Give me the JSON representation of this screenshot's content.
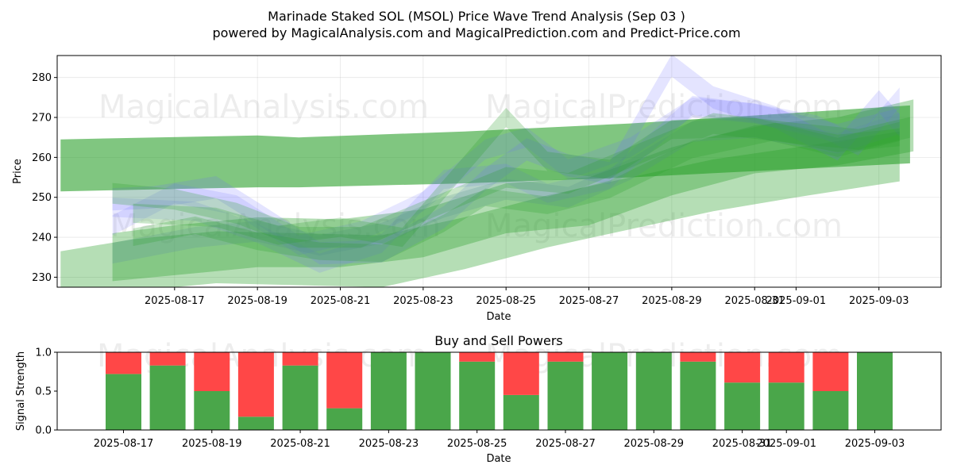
{
  "figure": {
    "title_line1": "Marinade Staked SOL (MSOL) Price Wave Trend Analysis (Sep 03 )",
    "title_line2": "powered by MagicalAnalysis.com and MagicalPrediction.com and Predict-Price.com",
    "watermarks": [
      "MagicalAnalysis.com",
      "MagicalPrediction.com"
    ]
  },
  "chart_data": [
    {
      "type": "area",
      "name": "price-wave-chart",
      "title": "",
      "xlabel": "Date",
      "ylabel": "Price",
      "xlim": [
        "2025-08-14T04:00",
        "2025-09-04T12:00"
      ],
      "ylim": [
        227.5,
        285.5
      ],
      "yticks": [
        230,
        240,
        250,
        260,
        270,
        280
      ],
      "xticks": [
        "2025-08-17",
        "2025-08-19",
        "2025-08-21",
        "2025-08-23",
        "2025-08-25",
        "2025-08-27",
        "2025-08-29",
        "2025-08-31",
        "2025-09-01",
        "2025-09-03"
      ],
      "xtick_labels": [
        "2025-08-17",
        "2025-08-19",
        "2025-08-21",
        "2025-08-23",
        "2025-08-25",
        "2025-08-27",
        "2025-08-29",
        "2025-08-31",
        "2025-09-01",
        "2025-09-03"
      ],
      "grid": true,
      "colors": {
        "green": "#2ca02c",
        "blue": "#6a6aff",
        "steel": "#5b8aa8"
      },
      "series": [
        {
          "name": "long-trend-upper",
          "color": "green",
          "opacity": 0.6,
          "x": [
            "2025-08-14T06:00",
            "2025-08-19T00:00",
            "2025-08-20T00:00",
            "2025-08-24T00:00",
            "2025-08-28T00:00",
            "2025-09-03T18:00"
          ],
          "upper": [
            264.5,
            265.5,
            265.0,
            266.5,
            268.5,
            273.0
          ],
          "lower": [
            251.5,
            252.5,
            252.5,
            253.5,
            255.0,
            258.5
          ]
        },
        {
          "name": "band-green-1",
          "color": "green",
          "opacity": 0.35,
          "x": [
            "2025-08-14T06:00",
            "2025-08-16T00:00",
            "2025-08-18T00:00",
            "2025-08-20T00:00",
            "2025-08-22T00:00",
            "2025-08-24T00:00",
            "2025-08-26T00:00",
            "2025-08-28T00:00",
            "2025-08-30T00:00",
            "2025-09-01T00:00",
            "2025-09-03T12:00"
          ],
          "upper": [
            236.5,
            239.5,
            241.5,
            241.0,
            240.5,
            245.0,
            250.5,
            255.0,
            259.5,
            262.5,
            266.5
          ],
          "lower": [
            223.0,
            226.5,
            228.5,
            228.0,
            227.5,
            232.0,
            237.5,
            242.0,
            246.5,
            250.0,
            254.0
          ]
        },
        {
          "name": "band-green-2",
          "color": "green",
          "opacity": 0.35,
          "x": [
            "2025-08-15T12:00",
            "2025-08-17T00:00",
            "2025-08-19T00:00",
            "2025-08-21T00:00",
            "2025-08-23T00:00",
            "2025-08-25T00:00",
            "2025-08-27T00:00",
            "2025-08-29T00:00",
            "2025-08-31T00:00",
            "2025-09-02T00:00",
            "2025-09-03T20:00"
          ],
          "upper": [
            241.0,
            243.0,
            245.0,
            244.5,
            247.0,
            253.5,
            255.0,
            262.5,
            268.0,
            270.0,
            274.5
          ],
          "lower": [
            229.0,
            230.5,
            232.5,
            232.5,
            235.0,
            241.0,
            243.0,
            250.5,
            256.0,
            258.0,
            261.5
          ]
        },
        {
          "name": "wave-blue-1",
          "color": "blue",
          "opacity": 0.18,
          "width": 2.8,
          "x": [
            "2025-08-15T12:00",
            "2025-08-16T12:00",
            "2025-08-18T00:00",
            "2025-08-19T00:00",
            "2025-08-20T12:00",
            "2025-08-22T00:00",
            "2025-08-23T12:00",
            "2025-08-24T12:00",
            "2025-08-25T12:00",
            "2025-08-26T12:00",
            "2025-08-27T12:00",
            "2025-08-29T00:00",
            "2025-08-30T00:00",
            "2025-08-31T12:00",
            "2025-09-02T00:00",
            "2025-09-03T00:00",
            "2025-09-03T12:00"
          ],
          "y": [
            249.5,
            250.0,
            252.5,
            246.0,
            236.0,
            236.5,
            245.0,
            254.5,
            262.0,
            258.0,
            256.0,
            283.0,
            275.0,
            270.0,
            262.0,
            274.0,
            268.0
          ]
        },
        {
          "name": "wave-blue-2",
          "color": "blue",
          "opacity": 0.16,
          "width": 2.5,
          "x": [
            "2025-08-15T12:00",
            "2025-08-17T00:00",
            "2025-08-18T12:00",
            "2025-08-20T00:00",
            "2025-08-21T12:00",
            "2025-08-23T00:00",
            "2025-08-24T12:00",
            "2025-08-25T12:00",
            "2025-08-26T12:00",
            "2025-08-28T00:00",
            "2025-08-29T12:00",
            "2025-08-31T00:00",
            "2025-09-01T12:00",
            "2025-09-02T12:00",
            "2025-09-03T12:00"
          ],
          "y": [
            243.0,
            251.0,
            248.0,
            238.0,
            241.5,
            249.0,
            262.0,
            265.0,
            257.0,
            262.5,
            272.5,
            271.0,
            268.0,
            263.0,
            275.0
          ]
        },
        {
          "name": "wave-blue-3",
          "color": "blue",
          "opacity": 0.16,
          "width": 2.4,
          "x": [
            "2025-08-15T12:00",
            "2025-08-17T12:00",
            "2025-08-19T00:00",
            "2025-08-20T12:00",
            "2025-08-22T00:00",
            "2025-08-23T12:00",
            "2025-08-25T00:00",
            "2025-08-26T00:00",
            "2025-08-27T12:00",
            "2025-08-29T12:00",
            "2025-08-31T00:00",
            "2025-09-02T00:00",
            "2025-09-03T12:00"
          ],
          "y": [
            247.5,
            246.5,
            241.0,
            233.5,
            238.5,
            254.5,
            256.0,
            251.0,
            254.5,
            273.0,
            271.0,
            266.0,
            270.0
          ]
        },
        {
          "name": "wave-steel-1",
          "color": "steel",
          "opacity": 0.22,
          "width": 2.6,
          "x": [
            "2025-08-15T12:00",
            "2025-08-17T12:00",
            "2025-08-19T00:00",
            "2025-08-20T12:00",
            "2025-08-22T00:00",
            "2025-08-23T12:00",
            "2025-08-25T00:00",
            "2025-08-26T12:00",
            "2025-08-28T00:00",
            "2025-08-29T12:00",
            "2025-08-31T00:00",
            "2025-09-02T00:00",
            "2025-09-03T12:00"
          ],
          "y": [
            236.0,
            240.0,
            241.5,
            238.0,
            241.0,
            247.5,
            252.0,
            250.0,
            257.0,
            266.5,
            267.5,
            263.5,
            268.5
          ]
        },
        {
          "name": "wave-green-1",
          "color": "green",
          "opacity": 0.25,
          "width": 2.6,
          "x": [
            "2025-08-15T12:00",
            "2025-08-17T00:00",
            "2025-08-18T12:00",
            "2025-08-20T00:00",
            "2025-08-21T12:00",
            "2025-08-23T00:00",
            "2025-08-25T00:00",
            "2025-08-26T12:00",
            "2025-08-28T00:00",
            "2025-08-30T00:00",
            "2025-09-01T00:00",
            "2025-09-02T12:00",
            "2025-09-03T18:00"
          ],
          "y": [
            251.0,
            249.5,
            246.0,
            240.0,
            240.0,
            246.5,
            255.0,
            253.5,
            260.0,
            268.5,
            266.0,
            264.5,
            267.5
          ]
        },
        {
          "name": "wave-green-2",
          "color": "green",
          "opacity": 0.25,
          "width": 2.4,
          "x": [
            "2025-08-16T00:00",
            "2025-08-18T00:00",
            "2025-08-19T12:00",
            "2025-08-21T00:00",
            "2025-08-22T12:00",
            "2025-08-24T00:00",
            "2025-08-25T00:00",
            "2025-08-26T00:00",
            "2025-08-27T12:00",
            "2025-08-29T00:00",
            "2025-08-31T00:00",
            "2025-09-02T00:00",
            "2025-09-03T12:00"
          ],
          "y": [
            246.0,
            245.0,
            240.5,
            242.5,
            240.0,
            258.0,
            270.0,
            259.0,
            257.0,
            267.0,
            267.5,
            262.5,
            266.5
          ]
        },
        {
          "name": "wave-green-3",
          "color": "green",
          "opacity": 0.25,
          "width": 2.2,
          "x": [
            "2025-08-16T00:00",
            "2025-08-17T12:00",
            "2025-08-19T00:00",
            "2025-08-20T12:00",
            "2025-08-22T00:00",
            "2025-08-23T12:00",
            "2025-08-24T12:00",
            "2025-08-26T00:00",
            "2025-08-27T12:00",
            "2025-08-29T12:00",
            "2025-08-31T12:00",
            "2025-09-02T00:00",
            "2025-09-03T12:00"
          ],
          "y": [
            240.0,
            243.0,
            239.0,
            236.5,
            236.0,
            243.5,
            250.0,
            248.0,
            252.0,
            262.0,
            266.5,
            263.5,
            265.0
          ]
        }
      ]
    },
    {
      "type": "bar",
      "name": "buy-sell-powers-chart",
      "title": "Buy and Sell Powers",
      "xlabel": "Date",
      "ylabel": "Signal Strength",
      "xlim": [
        "2025-08-15T12:00",
        "2025-09-04T12:00"
      ],
      "ylim": [
        0.0,
        1.0
      ],
      "yticks": [
        0.0,
        0.5,
        1.0
      ],
      "ytick_labels": [
        "0.0",
        "0.5",
        "1.0"
      ],
      "xticks": [
        "2025-08-17",
        "2025-08-19",
        "2025-08-21",
        "2025-08-23",
        "2025-08-25",
        "2025-08-27",
        "2025-08-29",
        "2025-08-31",
        "2025-09-01",
        "2025-09-03"
      ],
      "xtick_labels": [
        "2025-08-17",
        "2025-08-19",
        "2025-08-21",
        "2025-08-23",
        "2025-08-25",
        "2025-08-27",
        "2025-08-29",
        "2025-08-31",
        "2025-09-01",
        "2025-09-03"
      ],
      "grid": false,
      "colors": {
        "buy": "#4aa64a",
        "sell": "#ff4747"
      },
      "categories": [
        "2025-08-17",
        "2025-08-18",
        "2025-08-19",
        "2025-08-20",
        "2025-08-21",
        "2025-08-22",
        "2025-08-23",
        "2025-08-24",
        "2025-08-25",
        "2025-08-26",
        "2025-08-27",
        "2025-08-28",
        "2025-08-29",
        "2025-08-30",
        "2025-08-31",
        "2025-09-01",
        "2025-09-02",
        "2025-09-03"
      ],
      "series": [
        {
          "name": "Buy Power",
          "color": "buy",
          "values": [
            0.72,
            0.83,
            0.5,
            0.17,
            0.83,
            0.28,
            1.0,
            1.0,
            0.88,
            0.45,
            0.88,
            1.0,
            1.0,
            0.88,
            0.61,
            0.61,
            0.5,
            1.0
          ]
        },
        {
          "name": "Sell Power",
          "color": "sell",
          "values": [
            0.28,
            0.17,
            0.5,
            0.83,
            0.17,
            0.72,
            0.0,
            0.0,
            0.12,
            0.55,
            0.12,
            0.0,
            0.0,
            0.12,
            0.39,
            0.39,
            0.5,
            0.0
          ]
        }
      ]
    }
  ]
}
